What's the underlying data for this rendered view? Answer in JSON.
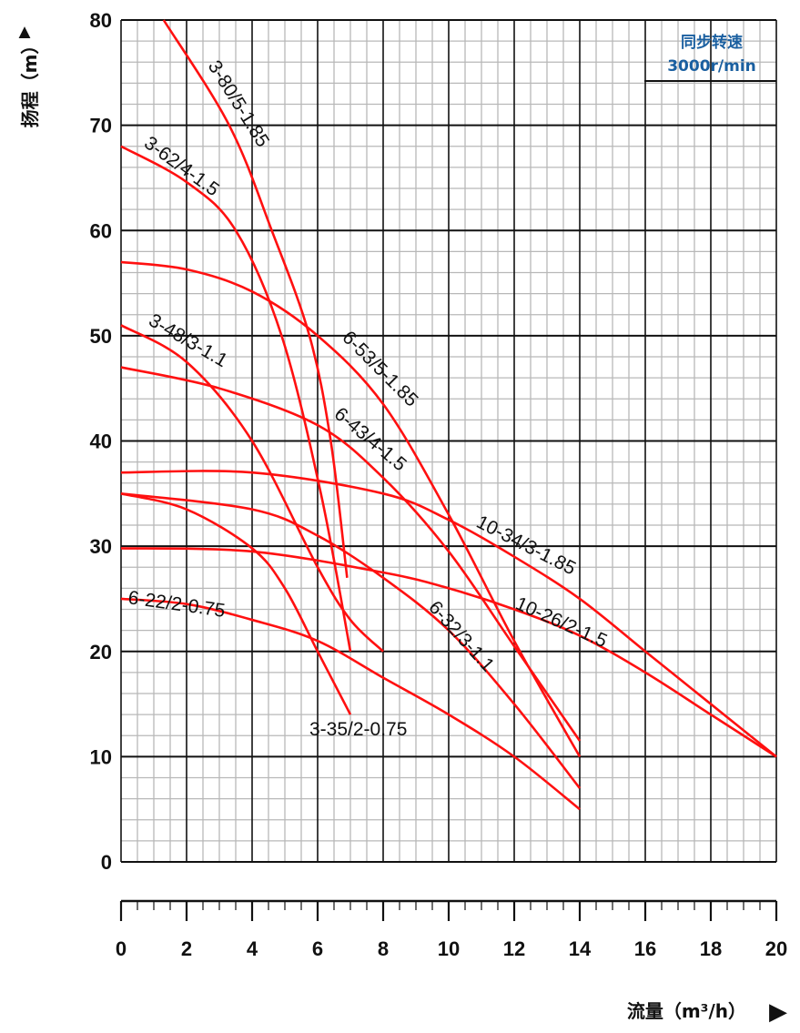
{
  "chart_data": {
    "type": "line",
    "xlabel": "流量（m³/h）",
    "ylabel": "扬程（m）",
    "xlim": [
      0,
      20
    ],
    "ylim": [
      0,
      80
    ],
    "x_ticks": [
      "0",
      "2",
      "4",
      "6",
      "8",
      "10",
      "12",
      "14",
      "16",
      "18",
      "20"
    ],
    "y_ticks": [
      "0",
      "10",
      "20",
      "30",
      "40",
      "50",
      "60",
      "70",
      "80"
    ],
    "grid": true,
    "colors": {
      "curve": "#ff1010",
      "grid_major": "#111111",
      "grid_minor": "#b8b8b8",
      "annotation": "#1a5fa0"
    },
    "annotation": {
      "line1": "同步转速",
      "line2": "3000r/min"
    },
    "series": [
      {
        "name": "3-80/5-1.85",
        "points": [
          [
            1.3,
            80
          ],
          [
            3.3,
            70
          ],
          [
            4.6,
            60
          ],
          [
            5.75,
            50
          ],
          [
            6.4,
            40
          ],
          [
            6.9,
            27
          ]
        ]
      },
      {
        "name": "3-62/4-1.5",
        "points": [
          [
            0,
            68
          ],
          [
            2,
            64.6
          ],
          [
            3.5,
            60
          ],
          [
            4.9,
            50
          ],
          [
            6.1,
            35
          ],
          [
            7,
            20
          ]
        ]
      },
      {
        "name": "6-53/5-1.85",
        "points": [
          [
            0,
            57
          ],
          [
            2,
            56.3
          ],
          [
            4,
            54.2
          ],
          [
            6,
            50
          ],
          [
            8,
            43.5
          ],
          [
            10,
            33
          ],
          [
            12,
            21
          ],
          [
            14,
            10
          ]
        ]
      },
      {
        "name": "3-48/3-1.1",
        "points": [
          [
            0,
            51
          ],
          [
            2,
            47.5
          ],
          [
            4,
            40
          ],
          [
            6,
            28
          ],
          [
            7,
            23
          ],
          [
            8,
            20
          ]
        ]
      },
      {
        "name": "6-43/4-1.5",
        "points": [
          [
            0,
            47
          ],
          [
            3,
            45
          ],
          [
            6,
            41.5
          ],
          [
            8,
            36.5
          ],
          [
            10,
            29.5
          ],
          [
            12,
            20.5
          ],
          [
            14,
            11.5
          ]
        ]
      },
      {
        "name": "10-34/3-1.85",
        "points": [
          [
            0,
            37
          ],
          [
            4,
            37
          ],
          [
            8,
            35
          ],
          [
            10,
            32.5
          ],
          [
            12,
            29
          ],
          [
            14,
            25
          ],
          [
            16,
            20
          ],
          [
            18,
            15
          ],
          [
            20,
            10
          ]
        ]
      },
      {
        "name": "3-35/2-0.75",
        "points": [
          [
            0,
            35
          ],
          [
            2,
            33.5
          ],
          [
            4,
            29.8
          ],
          [
            5,
            26
          ],
          [
            6,
            20
          ],
          [
            7,
            14
          ]
        ]
      },
      {
        "name": "6-32/3-1.1",
        "points": [
          [
            0,
            35
          ],
          [
            4,
            33.5
          ],
          [
            6,
            31
          ],
          [
            8,
            27
          ],
          [
            10,
            22
          ],
          [
            12,
            15
          ],
          [
            14,
            7
          ]
        ]
      },
      {
        "name": "10-26/2-1.5",
        "points": [
          [
            0,
            29.8
          ],
          [
            4,
            29.5
          ],
          [
            8,
            27.5
          ],
          [
            10,
            26
          ],
          [
            12,
            24
          ],
          [
            14,
            21.5
          ],
          [
            16,
            18
          ],
          [
            18,
            14
          ],
          [
            20,
            10
          ]
        ]
      },
      {
        "name": "6-22/2-0.75",
        "points": [
          [
            0,
            25
          ],
          [
            2,
            24.5
          ],
          [
            4,
            23
          ],
          [
            6,
            21
          ],
          [
            8,
            17.5
          ],
          [
            10,
            14
          ],
          [
            12,
            10
          ],
          [
            14,
            5
          ]
        ]
      }
    ]
  }
}
